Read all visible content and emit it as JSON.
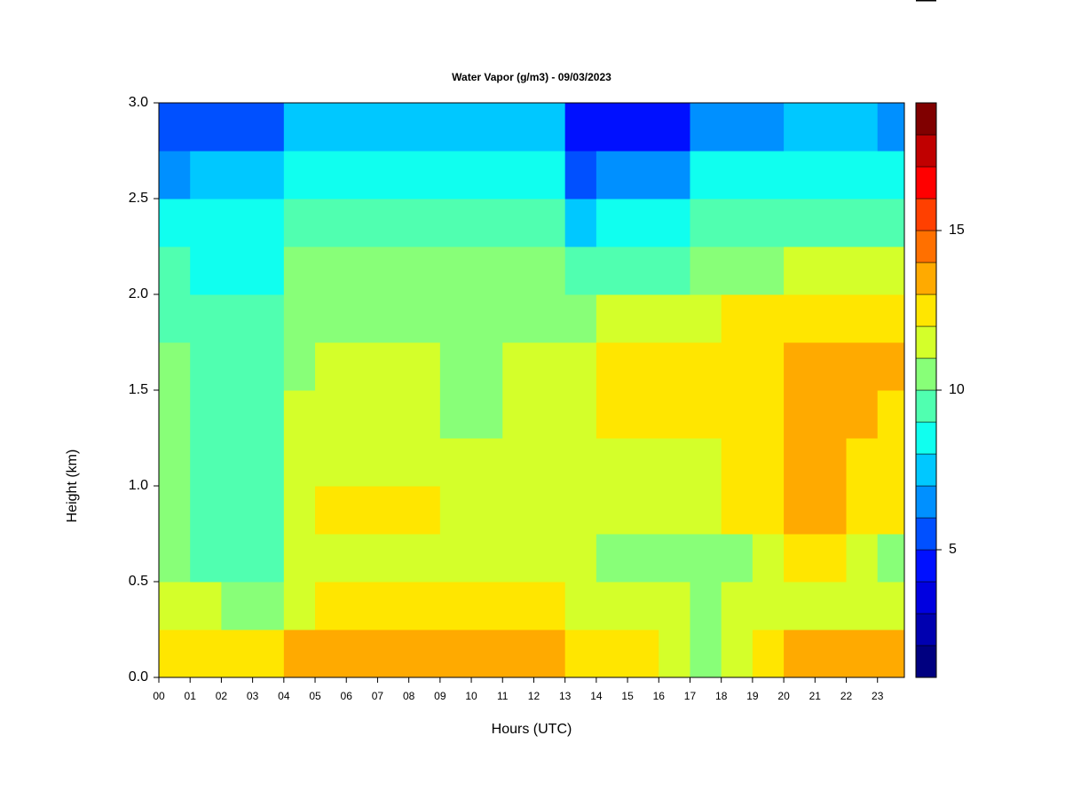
{
  "chart_data": {
    "type": "heatmap",
    "title": "Water Vapor (g/m3) - 09/03/2023",
    "x_label": "Hours (UTC)",
    "y_label": "Height (km)",
    "x": [
      0,
      1,
      2,
      3,
      4,
      5,
      6,
      7,
      8,
      9,
      10,
      11,
      12,
      13,
      14,
      15,
      16,
      17,
      18,
      19,
      20,
      21,
      22,
      23
    ],
    "y": [
      0,
      0.25,
      0.5,
      0.75,
      1,
      1.25,
      1.5,
      1.75,
      2,
      2.25,
      2.5,
      2.75
    ],
    "z": [
      [
        12.5,
        12.5,
        12.5,
        12.5,
        13.5,
        13.5,
        13.3,
        13.3,
        13.3,
        13.3,
        13.3,
        13.3,
        13.3,
        12.8,
        12.5,
        12.5,
        11,
        10.5,
        11.5,
        12.5,
        13.2,
        13.2,
        13.2,
        13.2
      ],
      [
        11.5,
        11.5,
        10.5,
        10.5,
        11.5,
        12.5,
        12.3,
        12.3,
        12.3,
        12.3,
        12.3,
        12.3,
        12.3,
        11.5,
        11.5,
        11.5,
        11,
        10.3,
        11,
        11.5,
        11.5,
        11.5,
        11.5,
        11.5
      ],
      [
        10.5,
        9.5,
        9.5,
        9.5,
        11,
        11.3,
        11.3,
        11.3,
        11.3,
        11.3,
        11.3,
        11.3,
        11.3,
        11.3,
        10.5,
        10.5,
        10.5,
        10.5,
        10.8,
        11.3,
        12.5,
        12.5,
        11.5,
        10.5
      ],
      [
        10.5,
        9.6,
        9.6,
        9.6,
        11.5,
        12.2,
        12.3,
        12.3,
        12.3,
        11.5,
        11.5,
        11.5,
        11.5,
        11.5,
        11.5,
        11.5,
        11.5,
        11.6,
        12.2,
        12.6,
        13.3,
        13.3,
        12.7,
        12.4
      ],
      [
        10.5,
        9.6,
        9.6,
        9.6,
        11.2,
        11.5,
        11.5,
        11.5,
        11.5,
        11.5,
        11.5,
        11.5,
        11.5,
        11.7,
        11.7,
        11.7,
        11.7,
        11.7,
        12.2,
        12.4,
        13.3,
        13.3,
        12.8,
        12.5
      ],
      [
        10.4,
        9.7,
        9.7,
        9.7,
        11.4,
        11.4,
        11.4,
        11.4,
        11.4,
        10.6,
        10.6,
        11.5,
        11.5,
        11.5,
        12,
        12,
        12,
        12,
        12.4,
        12.4,
        13,
        13,
        13,
        12.5
      ],
      [
        10.3,
        9.6,
        9.6,
        9.6,
        10.7,
        11.4,
        11.4,
        11.4,
        11.4,
        10.5,
        10.5,
        11.4,
        11.4,
        11.4,
        12.2,
        12.2,
        12.2,
        12.5,
        12.5,
        12.5,
        13.3,
        13.3,
        13.3,
        13.3
      ],
      [
        9.8,
        9.3,
        9.3,
        9.3,
        10.4,
        10.8,
        10.8,
        10.8,
        10.8,
        10.7,
        10.7,
        10.5,
        10.5,
        10.5,
        11.3,
        11.5,
        11.5,
        11.5,
        12.2,
        12.2,
        12.6,
        12.6,
        12.6,
        12.3
      ],
      [
        9,
        8.8,
        8.8,
        8.8,
        10,
        10,
        10,
        10,
        10,
        10,
        10,
        10,
        10,
        9,
        9.9,
        9.9,
        9.9,
        10.4,
        10.4,
        10.4,
        11,
        11,
        11,
        11
      ],
      [
        8,
        8.3,
        8.3,
        8.3,
        9.3,
        9.3,
        9.3,
        9.3,
        9.3,
        9.3,
        9.3,
        9.3,
        9.3,
        7,
        8.6,
        8.6,
        8.6,
        9.2,
        9.2,
        9.2,
        9.7,
        9.7,
        9.7,
        9.7
      ],
      [
        6.5,
        7.2,
        7.2,
        7.2,
        8.4,
        8.4,
        8.4,
        8.4,
        8.4,
        8.4,
        8.4,
        8.4,
        8.4,
        5.5,
        6.8,
        6.8,
        6.8,
        8,
        8,
        8,
        8.5,
        8.5,
        8.5,
        8
      ],
      [
        5,
        5.8,
        5.8,
        5.8,
        7.2,
        7.2,
        7.2,
        7.2,
        7.2,
        7.2,
        7.2,
        7.2,
        7.2,
        4.3,
        4.7,
        4.7,
        4.5,
        6,
        6,
        6,
        7,
        7,
        7,
        6
      ]
    ],
    "levels": [
      1,
      2,
      3,
      4,
      5,
      6,
      7,
      8,
      9,
      10,
      11,
      12,
      13,
      14,
      15,
      16,
      17,
      18,
      19
    ],
    "colors": [
      "#000080",
      "#0000b0",
      "#0000e0",
      "#0010ff",
      "#0050ff",
      "#0090ff",
      "#00c8ff",
      "#10ffef",
      "#50ffb0",
      "#88ff78",
      "#d4ff2a",
      "#ffe600",
      "#ffaa00",
      "#ff7000",
      "#ff4000",
      "#ff0000",
      "#c00000",
      "#800000"
    ],
    "xlim": [
      0,
      23.86
    ],
    "ylim": [
      0,
      3
    ],
    "xticks": [
      {
        "value": 0,
        "label": "00"
      },
      {
        "value": 1,
        "label": "01"
      },
      {
        "value": 2,
        "label": "02"
      },
      {
        "value": 3,
        "label": "03"
      },
      {
        "value": 4,
        "label": "04"
      },
      {
        "value": 5,
        "label": "05"
      },
      {
        "value": 6,
        "label": "06"
      },
      {
        "value": 7,
        "label": "07"
      },
      {
        "value": 8,
        "label": "08"
      },
      {
        "value": 9,
        "label": "09"
      },
      {
        "value": 10,
        "label": "10"
      },
      {
        "value": 11,
        "label": "11"
      },
      {
        "value": 12,
        "label": "12"
      },
      {
        "value": 13,
        "label": "13"
      },
      {
        "value": 14,
        "label": "14"
      },
      {
        "value": 15,
        "label": "15"
      },
      {
        "value": 16,
        "label": "16"
      },
      {
        "value": 17,
        "label": "17"
      },
      {
        "value": 18,
        "label": "18"
      },
      {
        "value": 19,
        "label": "19"
      },
      {
        "value": 20,
        "label": "20"
      },
      {
        "value": 21,
        "label": "21"
      },
      {
        "value": 22,
        "label": "22"
      },
      {
        "value": 23,
        "label": "23"
      }
    ],
    "yticks": [
      {
        "value": 0,
        "label": "0.0"
      },
      {
        "value": 0.5,
        "label": "0.5"
      },
      {
        "value": 1,
        "label": "1.0"
      },
      1.5,
      {
        "value": 2,
        "label": "2.0"
      },
      2.5,
      {
        "value": 3,
        "label": "3.0"
      }
    ],
    "zlim": [
      1,
      19
    ],
    "zticks": [
      5,
      10,
      15
    ]
  }
}
